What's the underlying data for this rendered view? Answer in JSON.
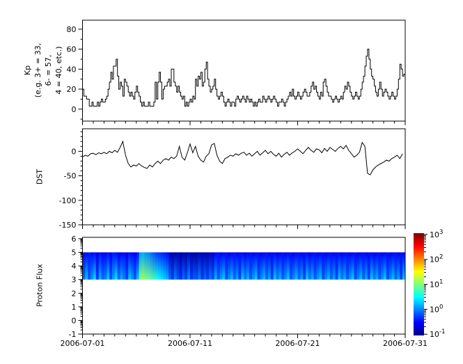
{
  "figure": {
    "background": "#ffffff",
    "axis_color": "#000000",
    "line_color": "#000000"
  },
  "x_axis": {
    "major_tick_days": [
      1,
      11,
      21,
      31
    ],
    "major_tick_labels": [
      "2006-07-01",
      "2006-07-11",
      "2006-07-21",
      "2006-07-31"
    ],
    "minor_tick_interval_days": 1,
    "range_days": [
      1,
      31
    ]
  },
  "chart_data": [
    {
      "type": "line",
      "style": "step",
      "ylabel": "Kp\n(e.g. 3+ = 33,\n6- = 57,\n4 = 40, etc.)",
      "ytick_labels": [
        "0",
        "20",
        "40",
        "60",
        "80"
      ],
      "yticks": [
        0,
        20,
        40,
        60,
        80
      ],
      "yminor_step": 10,
      "ylim": [
        -12,
        89
      ],
      "samples_per_day": 8,
      "values": [
        20,
        13,
        13,
        10,
        10,
        3,
        3,
        7,
        3,
        3,
        3,
        7,
        3,
        7,
        10,
        7,
        7,
        10,
        13,
        20,
        27,
        37,
        30,
        43,
        43,
        50,
        33,
        20,
        27,
        23,
        13,
        30,
        27,
        23,
        17,
        13,
        17,
        13,
        10,
        17,
        23,
        17,
        13,
        7,
        3,
        7,
        3,
        3,
        3,
        7,
        3,
        3,
        3,
        7,
        27,
        10,
        27,
        37,
        27,
        10,
        20,
        23,
        23,
        27,
        30,
        23,
        40,
        40,
        27,
        23,
        17,
        23,
        17,
        13,
        10,
        13,
        3,
        7,
        3,
        7,
        10,
        7,
        13,
        10,
        30,
        23,
        33,
        30,
        37,
        23,
        27,
        40,
        47,
        30,
        23,
        17,
        20,
        23,
        30,
        20,
        13,
        10,
        13,
        17,
        13,
        7,
        3,
        7,
        10,
        7,
        3,
        7,
        7,
        3,
        10,
        13,
        10,
        7,
        10,
        13,
        10,
        7,
        13,
        10,
        7,
        10,
        7,
        3,
        7,
        3,
        7,
        10,
        7,
        7,
        13,
        10,
        7,
        10,
        13,
        10,
        7,
        10,
        13,
        10,
        7,
        3,
        7,
        7,
        10,
        7,
        3,
        7,
        10,
        13,
        17,
        13,
        20,
        13,
        10,
        13,
        17,
        13,
        10,
        13,
        17,
        20,
        17,
        13,
        13,
        17,
        23,
        27,
        20,
        23,
        17,
        13,
        10,
        17,
        13,
        27,
        30,
        23,
        17,
        13,
        13,
        10,
        7,
        10,
        13,
        10,
        7,
        10,
        13,
        10,
        17,
        23,
        20,
        27,
        23,
        17,
        13,
        10,
        13,
        17,
        13,
        10,
        13,
        20,
        27,
        33,
        43,
        53,
        60,
        50,
        40,
        33,
        30,
        23,
        17,
        13,
        20,
        27,
        20,
        13,
        17,
        20,
        17,
        13,
        10,
        13,
        17,
        13,
        10,
        13,
        20,
        30,
        45,
        40,
        33,
        35
      ]
    },
    {
      "type": "line",
      "style": "line",
      "ylabel": "DST",
      "ytick_labels": [
        "0",
        "-50",
        "-100",
        "-150"
      ],
      "yticks": [
        0,
        -50,
        -100,
        -150
      ],
      "yminor_step": 10,
      "ylim": [
        -150,
        46
      ],
      "samples_per_day": 4,
      "values": [
        -12,
        -8,
        -10,
        -5,
        -4,
        -7,
        -3,
        -5,
        -2,
        -5,
        0,
        -3,
        2,
        -2,
        8,
        20,
        -8,
        -25,
        -32,
        -28,
        -30,
        -25,
        -30,
        -33,
        -35,
        -28,
        -32,
        -25,
        -20,
        -25,
        -18,
        -15,
        -18,
        -12,
        -15,
        -10,
        10,
        -12,
        -18,
        -3,
        15,
        -3,
        10,
        -10,
        -18,
        -22,
        -10,
        -5,
        13,
        16,
        -8,
        -20,
        -25,
        -15,
        -12,
        -8,
        -10,
        -5,
        -8,
        -4,
        -2,
        -8,
        -4,
        -10,
        -5,
        0,
        -8,
        -3,
        2,
        -5,
        0,
        -6,
        -10,
        -4,
        -12,
        -6,
        -2,
        -8,
        -3,
        0,
        5,
        0,
        -5,
        2,
        8,
        2,
        -2,
        5,
        3,
        -3,
        6,
        0,
        8,
        4,
        0,
        6,
        10,
        5,
        12,
        2,
        -5,
        -12,
        -8,
        -2,
        18,
        10,
        -45,
        -48,
        -38,
        -32,
        -28,
        -25,
        -22,
        -18,
        -20,
        -15,
        -12,
        -8,
        -15,
        -5
      ]
    },
    {
      "type": "heatmap",
      "ylabel": "Proton Flux",
      "ytick_labels": [
        "-1",
        "0",
        "1",
        "2",
        "3",
        "4",
        "5",
        "6"
      ],
      "yticks": [
        -1,
        0,
        1,
        2,
        3,
        4,
        5,
        6
      ],
      "yminor": "log-decade",
      "ylim": [
        -1,
        6.1
      ],
      "band_y": [
        3,
        5
      ],
      "samples_per_day": 4,
      "lower_log10_flux": [
        -0.1,
        0.3,
        -0.2,
        0.1,
        0.35,
        -0.3,
        0.2,
        -0.1,
        0,
        0.3,
        -0.2,
        0.15,
        0.4,
        -0.1,
        0.2,
        0,
        -0.25,
        0.3,
        0.1,
        -0.15,
        0.25,
        1.05,
        1.1,
        1,
        0.95,
        0.85,
        0.75,
        0.65,
        0.5,
        0.4,
        0.3,
        0.2,
        -0.1,
        -0.3,
        0,
        -0.2,
        -0.35,
        -0.1,
        -0.25,
        0.05,
        -0.3,
        -0.15,
        -0.2,
        0,
        -0.3,
        -0.1,
        -0.25,
        -0.05,
        -0.2,
        0.2,
        -0.15,
        0.1,
        0.3,
        -0.2,
        0.05,
        0.25,
        -0.1,
        0.15,
        -0.25,
        0.3,
        0,
        0.2,
        -0.15,
        0.1,
        0.3,
        -0.2,
        0.05,
        0.25,
        -0.1,
        0.15,
        -0.25,
        0.3,
        0,
        0.2,
        -0.15,
        0.1,
        0.3,
        -0.2,
        0.05,
        0.25,
        -0.1,
        0.15,
        -0.25,
        0.3,
        0,
        0.2,
        -0.15,
        0.1,
        0.3,
        -0.2,
        0.05,
        0.25,
        -0.1,
        0.15,
        -0.25,
        0.3,
        0,
        0.2,
        -0.15,
        0.1,
        0.3,
        -0.2,
        0.05,
        0.25,
        -0.1,
        0.15,
        -0.25,
        0.3,
        0,
        0.2,
        -0.15,
        0.1,
        0.3,
        -0.2,
        0.05,
        0.25,
        -0.1,
        0.15,
        -0.25,
        0.3
      ],
      "upper_log10_flux": [
        -0.5,
        -0.6,
        -0.45,
        -0.55,
        -0.5,
        -0.65,
        -0.5,
        -0.55,
        -0.6,
        -0.5,
        -0.55,
        -0.45,
        -0.5,
        -0.6,
        -0.55,
        -0.5,
        -0.65,
        -0.5,
        -0.55,
        -0.6,
        -0.5,
        0.1,
        0.15,
        0.05,
        0,
        -0.1,
        -0.2,
        -0.3,
        -0.35,
        -0.4,
        -0.45,
        -0.5,
        -0.8,
        -0.85,
        -0.9,
        -0.8,
        -0.95,
        -0.85,
        -0.9,
        -0.8,
        -0.85,
        -0.95,
        -0.9,
        -0.85,
        -0.8,
        -0.9,
        -0.85,
        -0.8,
        -0.75,
        -0.55,
        -0.5,
        -0.6,
        -0.55,
        -0.5,
        -0.65,
        -0.55,
        -0.5,
        -0.6,
        -0.5,
        -0.55,
        -0.6,
        -0.55,
        -0.5,
        -0.6,
        -0.55,
        -0.5,
        -0.65,
        -0.55,
        -0.5,
        -0.6,
        -0.5,
        -0.55,
        -0.6,
        -0.55,
        -0.5,
        -0.6,
        -0.55,
        -0.5,
        -0.65,
        -0.55,
        -0.5,
        -0.6,
        -0.5,
        -0.55,
        -0.6,
        -0.55,
        -0.5,
        -0.6,
        -0.55,
        -0.5,
        -0.65,
        -0.55,
        -0.5,
        -0.6,
        -0.5,
        -0.55,
        -0.6,
        -0.55,
        -0.5,
        -0.6,
        -0.55,
        -0.5,
        -0.65,
        -0.55,
        -0.5,
        -0.6,
        -0.5,
        -0.55,
        -0.6,
        -0.55,
        -0.5,
        -0.6,
        -0.55,
        -0.5,
        -0.65,
        -0.55,
        -0.5,
        -0.6,
        -0.5,
        -0.55
      ],
      "colorbar": {
        "scale": "log",
        "colormap": "jet",
        "tick_exponents": [
          3,
          2,
          1,
          0,
          -1
        ],
        "tick_base": "10",
        "range_exponents": [
          -1.05,
          3.05
        ]
      }
    }
  ]
}
